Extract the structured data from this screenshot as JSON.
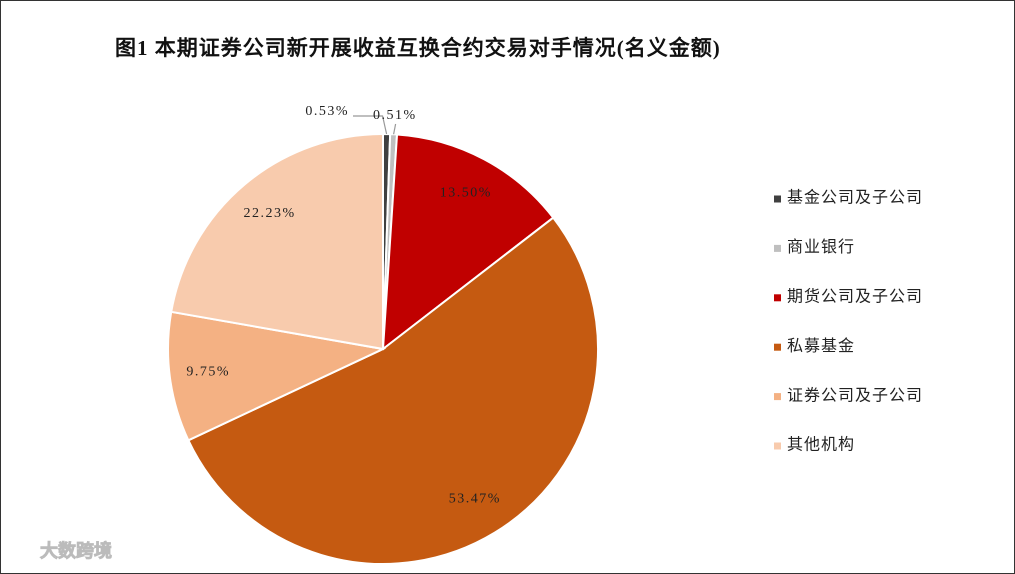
{
  "chart_data": {
    "type": "pie",
    "title": "图1 本期证券公司新开展收益互换合约交易对手情况(名义金额)",
    "categories": [
      "基金公司及子公司",
      "商业银行",
      "期货公司及子公司",
      "私募基金",
      "证券公司及子公司",
      "其他机构"
    ],
    "values": [
      0.53,
      0.51,
      13.5,
      53.47,
      9.75,
      22.23
    ],
    "value_labels": [
      "0.53%",
      "0.51%",
      "13.50%",
      "53.47%",
      "9.75%",
      "22.23%"
    ],
    "colors": [
      "#404040",
      "#bfbfbf",
      "#c00000",
      "#c55a11",
      "#f4b183",
      "#f8cbad"
    ],
    "legend": "right"
  },
  "watermark": "大数跨境"
}
